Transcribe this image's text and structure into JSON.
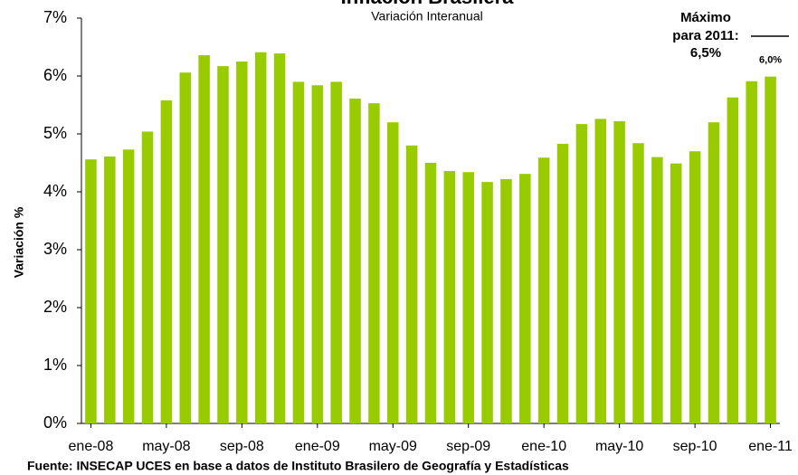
{
  "chart_data": {
    "type": "bar",
    "title": "Inflación Brasilera",
    "subtitle": "Variación Interanual",
    "y_label": "Variación %",
    "source": "Fuente: INSECAP UCES en base a datos de Instituto Brasilero de Geografía y Estadísticas",
    "annotation": [
      "Máximo",
      "para 2011:",
      "6,5%"
    ],
    "categories": [
      "ene-08",
      null,
      null,
      null,
      "may-08",
      null,
      null,
      null,
      "sep-08",
      null,
      null,
      null,
      "ene-09",
      null,
      null,
      null,
      "may-09",
      null,
      null,
      null,
      "sep-09",
      null,
      null,
      null,
      "ene-10",
      null,
      null,
      null,
      "may-10",
      null,
      null,
      null,
      "sep-10",
      null,
      null,
      null,
      "ene-11"
    ],
    "values": [
      4.56,
      4.61,
      4.73,
      5.04,
      5.58,
      6.06,
      6.36,
      6.17,
      6.25,
      6.41,
      6.39,
      5.9,
      5.84,
      5.9,
      5.61,
      5.53,
      5.2,
      4.8,
      4.5,
      4.36,
      4.34,
      4.17,
      4.22,
      4.31,
      4.59,
      4.83,
      5.17,
      5.26,
      5.22,
      4.84,
      4.6,
      4.49,
      4.7,
      5.2,
      5.63,
      5.91,
      5.99
    ],
    "value_labels": [
      null,
      null,
      null,
      null,
      null,
      null,
      null,
      null,
      null,
      null,
      null,
      null,
      null,
      null,
      null,
      null,
      null,
      null,
      null,
      null,
      null,
      null,
      null,
      null,
      null,
      null,
      null,
      null,
      null,
      null,
      null,
      null,
      null,
      null,
      null,
      null,
      "6,0%"
    ],
    "color": "#99cc00",
    "ylim": [
      0,
      7
    ],
    "yticks": [
      {
        "value": 0,
        "label": "0%"
      },
      {
        "value": 1,
        "label": "1%"
      },
      {
        "value": 2,
        "label": "2%"
      },
      {
        "value": 3,
        "label": "3%"
      },
      {
        "value": 4,
        "label": "4%"
      },
      {
        "value": 5,
        "label": "5%"
      },
      {
        "value": 6,
        "label": "6%"
      },
      {
        "value": 7,
        "label": "7%"
      }
    ],
    "grid": false
  }
}
